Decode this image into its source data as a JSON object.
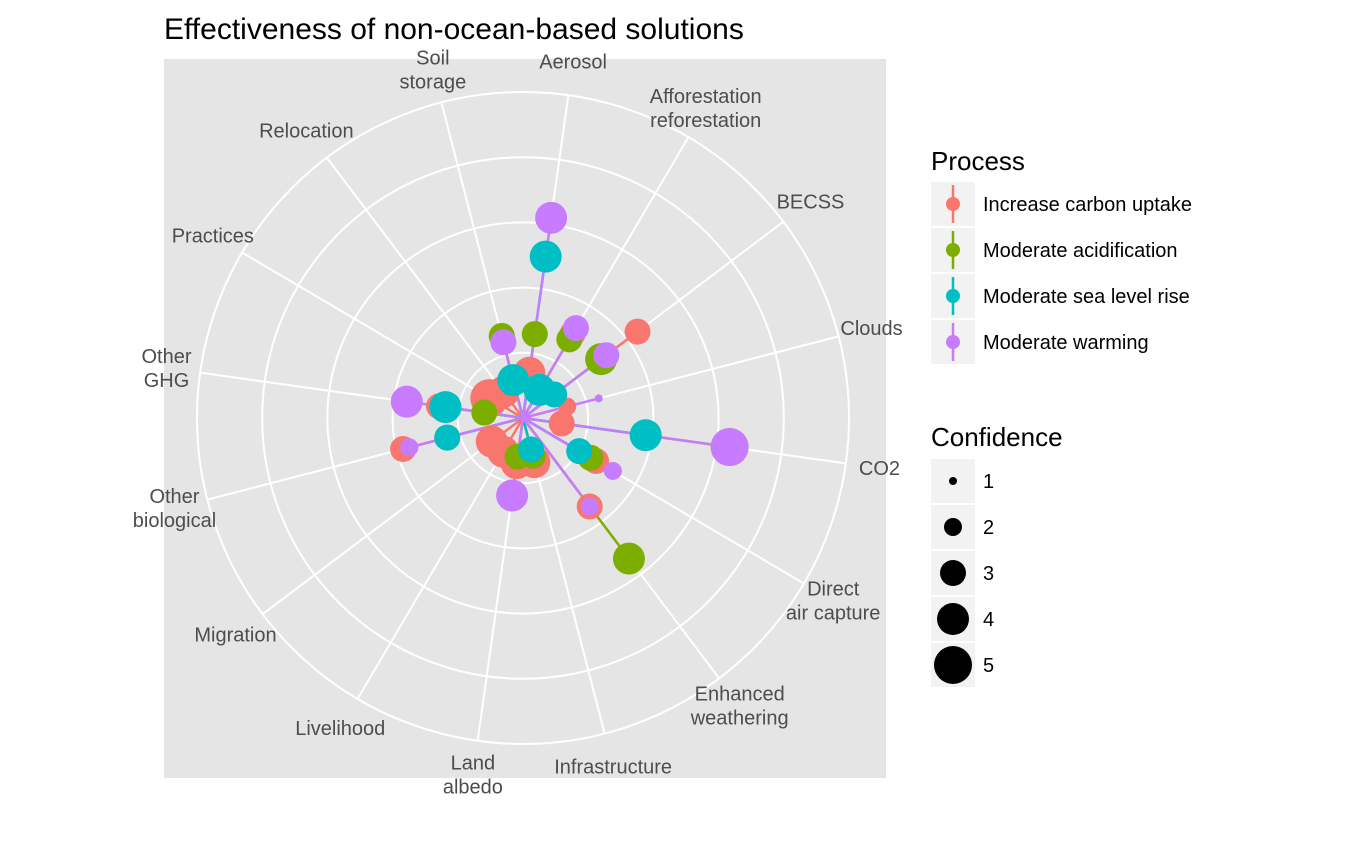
{
  "chart_data": {
    "type": "polar-scatter",
    "title": "Effectiveness of non-ocean-based solutions",
    "categories": [
      "Aerosol",
      "Afforestation\nreforestation",
      "BECSS",
      "Clouds",
      "CO2",
      "Direct\nair capture",
      "Enhanced\nweathering",
      "Infrastructure",
      "Land\nalbedo",
      "Livelihood",
      "Migration",
      "Other\nbiological",
      "Other\nGHG",
      "Practices",
      "Relocation",
      "Soil\nstorage"
    ],
    "rlim": [
      0,
      5
    ],
    "legends": {
      "process": {
        "title": "Process",
        "items": [
          {
            "name": "Increase carbon uptake",
            "color": "#F8766D"
          },
          {
            "name": "Moderate acidification",
            "color": "#7CAE00"
          },
          {
            "name": "Moderate sea level rise",
            "color": "#00BFC4"
          },
          {
            "name": "Moderate warming",
            "color": "#C77CFF"
          }
        ]
      },
      "confidence": {
        "title": "Confidence",
        "items": [
          "1",
          "2",
          "3",
          "4",
          "5"
        ]
      }
    },
    "series": [
      {
        "name": "Increase carbon uptake",
        "color": "#F8766D",
        "points": [
          {
            "category": 0,
            "r": 0.7,
            "confidence": 4
          },
          {
            "category": 1,
            "r": 1.5,
            "confidence": 3
          },
          {
            "category": 2,
            "r": 2.2,
            "confidence": 3
          },
          {
            "category": 3,
            "r": 0.7,
            "confidence": 2
          },
          {
            "category": 4,
            "r": 0.6,
            "confidence": 3
          },
          {
            "category": 5,
            "r": 1.3,
            "confidence": 3
          },
          {
            "category": 6,
            "r": 1.7,
            "confidence": 3
          },
          {
            "category": 7,
            "r": 0.7,
            "confidence": 4
          },
          {
            "category": 8,
            "r": 0.7,
            "confidence": 4
          },
          {
            "category": 9,
            "r": 0.6,
            "confidence": 4
          },
          {
            "category": 10,
            "r": 0.6,
            "confidence": 4
          },
          {
            "category": 11,
            "r": 1.9,
            "confidence": 3
          },
          {
            "category": 12,
            "r": 1.3,
            "confidence": 3
          },
          {
            "category": 13,
            "r": 0.6,
            "confidence": 5
          },
          {
            "category": 14,
            "r": 0.5,
            "confidence": 4
          },
          {
            "category": 15,
            "r": 1.3,
            "confidence": 3
          }
        ]
      },
      {
        "name": "Moderate acidification",
        "color": "#7CAE00",
        "points": [
          {
            "category": 0,
            "r": 1.3,
            "confidence": 3
          },
          {
            "category": 1,
            "r": 1.4,
            "confidence": 3
          },
          {
            "category": 2,
            "r": 1.5,
            "confidence": 4
          },
          {
            "category": 4,
            "r": 3.2,
            "confidence": 5
          },
          {
            "category": 5,
            "r": 1.2,
            "confidence": 3
          },
          {
            "category": 6,
            "r": 2.7,
            "confidence": 4
          },
          {
            "category": 7,
            "r": 0.6,
            "confidence": 3
          },
          {
            "category": 8,
            "r": 0.6,
            "confidence": 3
          },
          {
            "category": 11,
            "r": 1.2,
            "confidence": 3
          },
          {
            "category": 12,
            "r": 0.6,
            "confidence": 3
          },
          {
            "category": 15,
            "r": 1.3,
            "confidence": 3
          }
        ]
      },
      {
        "name": "Moderate sea level rise",
        "color": "#00BFC4",
        "points": [
          {
            "category": 0,
            "r": 2.5,
            "confidence": 4
          },
          {
            "category": 1,
            "r": 0.5,
            "confidence": 4
          },
          {
            "category": 2,
            "r": 0.6,
            "confidence": 3
          },
          {
            "category": 4,
            "r": 1.9,
            "confidence": 4
          },
          {
            "category": 5,
            "r": 1.0,
            "confidence": 3
          },
          {
            "category": 7,
            "r": 0.5,
            "confidence": 3
          },
          {
            "category": 11,
            "r": 1.2,
            "confidence": 3
          },
          {
            "category": 12,
            "r": 1.2,
            "confidence": 4
          },
          {
            "category": 15,
            "r": 0.6,
            "confidence": 4
          }
        ]
      },
      {
        "name": "Moderate warming",
        "color": "#C77CFF",
        "points": [
          {
            "category": 0,
            "r": 3.1,
            "confidence": 4
          },
          {
            "category": 1,
            "r": 1.6,
            "confidence": 3
          },
          {
            "category": 2,
            "r": 1.6,
            "confidence": 3
          },
          {
            "category": 3,
            "r": 1.2,
            "confidence": 1
          },
          {
            "category": 4,
            "r": 3.2,
            "confidence": 5
          },
          {
            "category": 5,
            "r": 1.6,
            "confidence": 2
          },
          {
            "category": 6,
            "r": 1.7,
            "confidence": 2
          },
          {
            "category": 8,
            "r": 1.2,
            "confidence": 4
          },
          {
            "category": 11,
            "r": 1.8,
            "confidence": 2
          },
          {
            "category": 12,
            "r": 1.8,
            "confidence": 4
          },
          {
            "category": 15,
            "r": 1.2,
            "confidence": 3
          }
        ]
      }
    ]
  }
}
